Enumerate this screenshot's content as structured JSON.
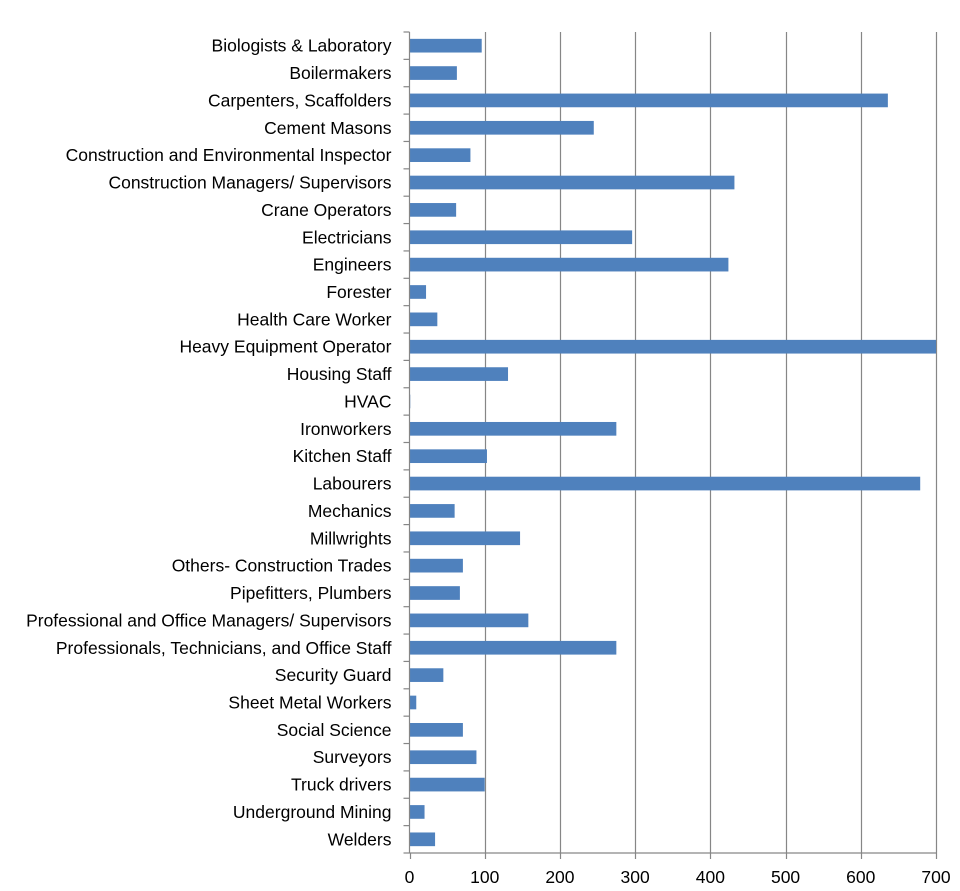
{
  "chart_data": {
    "type": "bar",
    "orientation": "horizontal",
    "title": "",
    "xlabel": "",
    "ylabel": "",
    "xlim": [
      0,
      700
    ],
    "x_ticks": [
      0,
      100,
      200,
      300,
      400,
      500,
      600,
      700
    ],
    "grid": "vertical",
    "legend": "none",
    "bar_color": "#4f81bd",
    "grid_color": "#868686",
    "categories": [
      "Biologists & Laboratory",
      "Boilermakers",
      "Carpenters, Scaffolders",
      "Cement Masons",
      "Construction and Environmental Inspector",
      "Construction Managers/ Supervisors",
      "Crane Operators",
      "Electricians",
      "Engineers",
      "Forester",
      "Health Care Worker",
      "Heavy Equipment Operator",
      "Housing Staff",
      "HVAC",
      "Ironworkers",
      "Kitchen Staff",
      "Labourers",
      "Mechanics",
      "Millwrights",
      "Others- Construction Trades",
      "Pipefitters, Plumbers",
      "Professional and Office Managers/ Supervisors",
      "Professionals, Technicians, and Office Staff",
      "Security Guard",
      "Sheet Metal Workers",
      "Social Science",
      "Surveyors",
      "Truck drivers",
      "Underground Mining",
      "Welders"
    ],
    "values": [
      96,
      63,
      636,
      245,
      81,
      432,
      62,
      296,
      424,
      22,
      37,
      700,
      131,
      1,
      275,
      103,
      679,
      60,
      147,
      71,
      67,
      158,
      275,
      45,
      9,
      71,
      89,
      100,
      20,
      34
    ]
  }
}
